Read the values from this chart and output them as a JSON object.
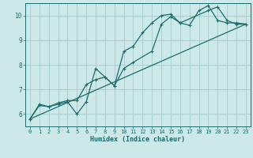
{
  "bg_color": "#cde8e8",
  "grid_color": "#aacfcf",
  "line_color": "#1a6e6e",
  "xlabel": "Humidex (Indice chaleur)",
  "xlim": [
    -0.5,
    23.5
  ],
  "ylim": [
    5.5,
    10.5
  ],
  "yticks": [
    6,
    7,
    8,
    9,
    10
  ],
  "xticks": [
    0,
    1,
    2,
    3,
    4,
    5,
    6,
    7,
    8,
    9,
    10,
    11,
    12,
    13,
    14,
    15,
    16,
    17,
    18,
    19,
    20,
    21,
    22,
    23
  ],
  "line1_x": [
    0,
    1,
    2,
    3,
    4,
    5,
    6,
    7,
    8,
    9,
    10,
    11,
    12,
    13,
    14,
    15,
    16,
    17,
    18,
    19,
    20,
    21,
    22,
    23
  ],
  "line1_y": [
    5.8,
    6.4,
    6.3,
    6.4,
    6.5,
    6.0,
    6.5,
    7.85,
    7.5,
    7.15,
    8.55,
    8.75,
    9.3,
    9.7,
    10.0,
    10.05,
    9.7,
    9.6,
    10.2,
    10.4,
    9.8,
    9.7,
    9.7,
    9.65
  ],
  "line2_x": [
    0,
    23
  ],
  "line2_y": [
    5.8,
    9.65
  ],
  "line3_x": [
    0,
    1,
    2,
    3,
    4,
    5,
    6,
    7,
    8,
    9,
    10,
    11,
    13,
    14,
    15,
    16,
    19,
    20,
    21,
    22,
    23
  ],
  "line3_y": [
    5.8,
    6.35,
    6.3,
    6.45,
    6.55,
    6.55,
    7.2,
    7.4,
    7.5,
    7.15,
    7.85,
    8.1,
    8.55,
    9.65,
    9.95,
    9.7,
    10.2,
    10.35,
    9.8,
    9.65,
    9.65
  ]
}
